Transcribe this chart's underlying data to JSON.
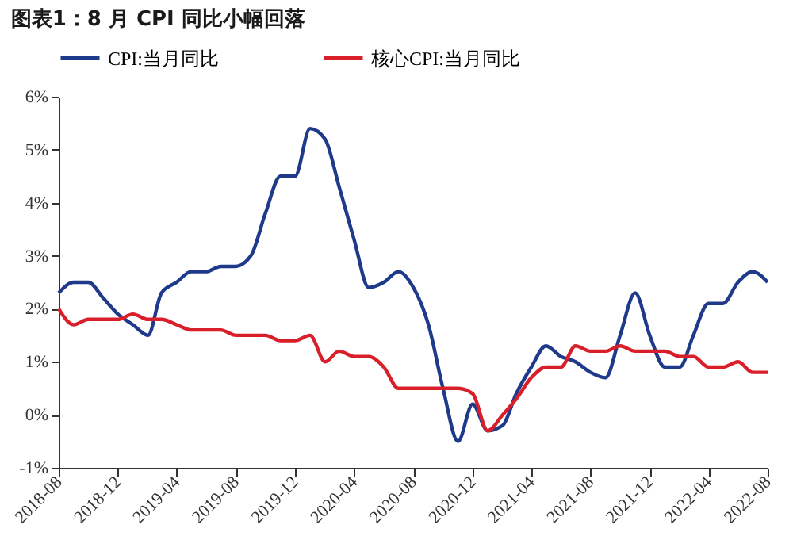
{
  "chart_data": {
    "type": "line",
    "title": "图表1：8 月 CPI 同比小幅回落",
    "x": [
      "2018-08",
      "2018-09",
      "2018-10",
      "2018-11",
      "2018-12",
      "2019-01",
      "2019-02",
      "2019-03",
      "2019-04",
      "2019-05",
      "2019-06",
      "2019-07",
      "2019-08",
      "2019-09",
      "2019-10",
      "2019-11",
      "2019-12",
      "2020-01",
      "2020-02",
      "2020-03",
      "2020-04",
      "2020-05",
      "2020-06",
      "2020-07",
      "2020-08",
      "2020-09",
      "2020-10",
      "2020-11",
      "2020-12",
      "2021-01",
      "2021-02",
      "2021-03",
      "2021-04",
      "2021-05",
      "2021-06",
      "2021-07",
      "2021-08",
      "2021-09",
      "2021-10",
      "2021-11",
      "2021-12",
      "2022-01",
      "2022-02",
      "2022-03",
      "2022-04",
      "2022-05",
      "2022-06",
      "2022-07",
      "2022-08"
    ],
    "series": [
      {
        "name": "CPI:当月同比",
        "color": "#1f3a8a",
        "values": [
          2.3,
          2.5,
          2.5,
          2.2,
          1.9,
          1.7,
          1.5,
          2.3,
          2.5,
          2.7,
          2.7,
          2.8,
          2.8,
          3.0,
          3.8,
          4.5,
          4.5,
          5.4,
          5.2,
          4.3,
          3.3,
          2.4,
          2.5,
          2.7,
          2.4,
          1.7,
          0.5,
          -0.5,
          0.2,
          -0.3,
          -0.2,
          0.4,
          0.9,
          1.3,
          1.1,
          1.0,
          0.8,
          0.7,
          1.5,
          2.3,
          1.5,
          0.9,
          0.9,
          1.5,
          2.1,
          2.1,
          2.5,
          2.7,
          2.5
        ]
      },
      {
        "name": "核心CPI:当月同比",
        "color": "#d9202a",
        "values": [
          2.0,
          1.7,
          1.8,
          1.8,
          1.8,
          1.9,
          1.8,
          1.8,
          1.7,
          1.6,
          1.6,
          1.6,
          1.5,
          1.5,
          1.5,
          1.4,
          1.4,
          1.5,
          1.0,
          1.2,
          1.1,
          1.1,
          0.9,
          0.5,
          0.5,
          0.5,
          0.5,
          0.5,
          0.4,
          -0.3,
          0.0,
          0.3,
          0.7,
          0.9,
          0.9,
          1.3,
          1.2,
          1.2,
          1.3,
          1.2,
          1.2,
          1.2,
          1.1,
          1.1,
          0.9,
          0.9,
          1.0,
          0.8,
          0.8
        ]
      }
    ],
    "xlim": [
      "2018-08",
      "2022-08"
    ],
    "xticks": [
      "2018-08",
      "2018-12",
      "2019-04",
      "2019-08",
      "2019-12",
      "2020-04",
      "2020-08",
      "2020-12",
      "2021-04",
      "2021-08",
      "2021-12",
      "2022-04",
      "2022-08"
    ],
    "ylim": [
      -1,
      6
    ],
    "yticks": [
      {
        "value": -1,
        "label": "-1%"
      },
      {
        "value": 0,
        "label": "0%"
      },
      {
        "value": 1,
        "label": "1%"
      },
      {
        "value": 2,
        "label": "2%"
      },
      {
        "value": 3,
        "label": "3%"
      },
      {
        "value": 4,
        "label": "4%"
      },
      {
        "value": 5,
        "label": "5%"
      },
      {
        "value": 6,
        "label": "6%"
      }
    ],
    "legend": "top",
    "grid": false,
    "marker": "none",
    "line_style": "solid"
  }
}
